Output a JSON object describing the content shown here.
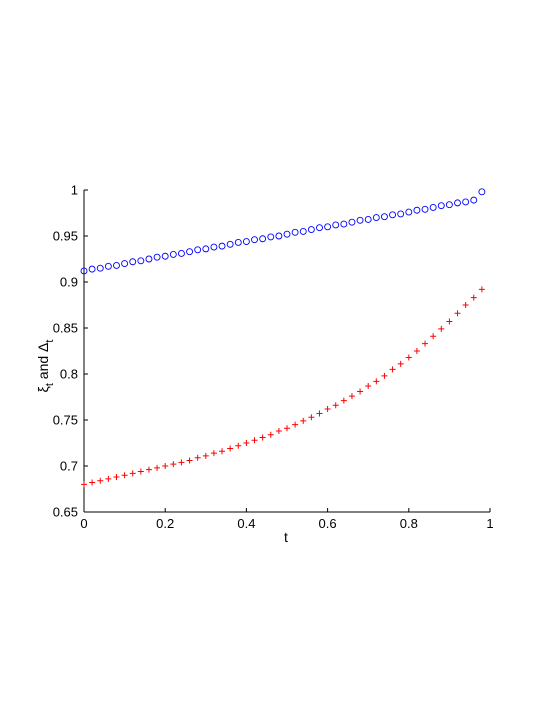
{
  "chart_data": {
    "type": "scatter",
    "title": "",
    "xlabel": "t",
    "ylabel": {
      "xi": "ξ",
      "xi_sub": "t",
      "and": " and ",
      "delta": "Δ",
      "delta_sub": "t"
    },
    "xlim": [
      0,
      1
    ],
    "ylim": [
      0.65,
      1
    ],
    "xticks": [
      0,
      0.2,
      0.4,
      0.6,
      0.8,
      1
    ],
    "xtick_labels": [
      "0",
      "0.2",
      "0.4",
      "0.6",
      "0.8",
      "1"
    ],
    "yticks": [
      0.65,
      0.7,
      0.75,
      0.8,
      0.85,
      0.9,
      0.95,
      1
    ],
    "ytick_labels": [
      "0.65",
      "0.7",
      "0.75",
      "0.8",
      "0.85",
      "0.9",
      "0.95",
      "1"
    ],
    "grid": false,
    "legend": "none",
    "x": [
      0,
      0.02,
      0.04,
      0.06,
      0.08,
      0.1,
      0.12,
      0.14,
      0.16,
      0.18,
      0.2,
      0.22,
      0.24,
      0.26,
      0.28,
      0.3,
      0.32,
      0.34,
      0.36,
      0.38,
      0.4,
      0.42,
      0.44,
      0.46,
      0.48,
      0.5,
      0.52,
      0.54,
      0.56,
      0.58,
      0.6,
      0.62,
      0.64,
      0.66,
      0.68,
      0.7,
      0.72,
      0.74,
      0.76,
      0.78,
      0.8,
      0.82,
      0.84,
      0.86,
      0.88,
      0.9,
      0.92,
      0.94,
      0.96,
      0.98
    ],
    "series": [
      {
        "marker": "circle",
        "color": "#0000ff",
        "values": [
          0.912,
          0.914,
          0.915,
          0.917,
          0.918,
          0.92,
          0.922,
          0.923,
          0.925,
          0.927,
          0.928,
          0.93,
          0.931,
          0.933,
          0.935,
          0.936,
          0.938,
          0.939,
          0.941,
          0.943,
          0.944,
          0.946,
          0.947,
          0.949,
          0.95,
          0.952,
          0.954,
          0.955,
          0.957,
          0.959,
          0.96,
          0.962,
          0.963,
          0.965,
          0.967,
          0.968,
          0.97,
          0.971,
          0.973,
          0.974,
          0.976,
          0.978,
          0.979,
          0.981,
          0.983,
          0.984,
          0.986,
          0.987,
          0.989,
          0.998
        ]
      },
      {
        "marker": "plus",
        "color": "#ff0000",
        "values": [
          0.68,
          0.682,
          0.684,
          0.686,
          0.688,
          0.69,
          0.692,
          0.694,
          0.696,
          0.698,
          0.7,
          0.702,
          0.704,
          0.706,
          0.709,
          0.711,
          0.714,
          0.716,
          0.719,
          0.722,
          0.725,
          0.728,
          0.731,
          0.734,
          0.738,
          0.741,
          0.745,
          0.749,
          0.753,
          0.757,
          0.762,
          0.766,
          0.771,
          0.776,
          0.781,
          0.787,
          0.792,
          0.798,
          0.805,
          0.811,
          0.818,
          0.825,
          0.833,
          0.841,
          0.849,
          0.857,
          0.866,
          0.875,
          0.883,
          0.892
        ]
      }
    ]
  }
}
